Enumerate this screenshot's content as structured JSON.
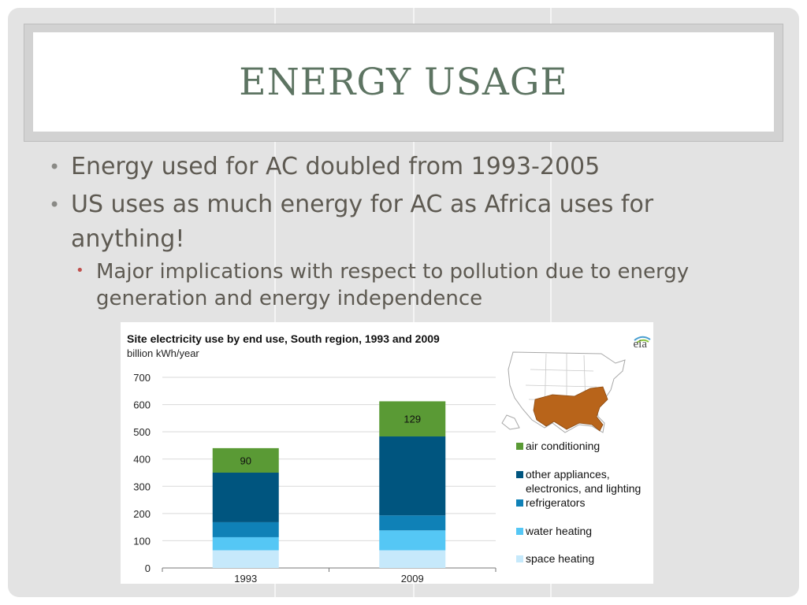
{
  "slide": {
    "title": "ENERGY USAGE",
    "bullets": [
      "Energy used for AC doubled from 1993-2005",
      "US uses as much energy for AC as Africa uses for anything!"
    ],
    "sub_bullets": [
      "Major implications with respect to pollution due to energy generation and energy independence"
    ],
    "bullet_glyph": "•"
  },
  "chart_data": {
    "type": "bar",
    "stacked": true,
    "title": "Site electricity  use by end use,  South region, 1993 and 2009",
    "subtitle": "billion kWh/year",
    "logo_text": "eia",
    "categories": [
      "1993",
      "2009"
    ],
    "ylim": [
      0,
      700
    ],
    "yticks": [
      0,
      100,
      200,
      300,
      400,
      500,
      600,
      700
    ],
    "grid": true,
    "legend_position": "right",
    "series": [
      {
        "name": "space heating",
        "values": [
          65,
          65
        ],
        "color": "#c6e9fb"
      },
      {
        "name": "water heating",
        "values": [
          48,
          73
        ],
        "color": "#55c7f5"
      },
      {
        "name": "refrigerators",
        "values": [
          55,
          55
        ],
        "color": "#0f81b7"
      },
      {
        "name": "other appliances, electronics, and lighting",
        "values": [
          182,
          290
        ],
        "color": "#00557f"
      },
      {
        "name": "air conditioning",
        "values": [
          90,
          129
        ],
        "color": "#5a9a35"
      }
    ],
    "data_labels": [
      {
        "series": "air conditioning",
        "values": [
          "90",
          "129"
        ]
      }
    ],
    "map_highlight_color": "#b8641a"
  }
}
